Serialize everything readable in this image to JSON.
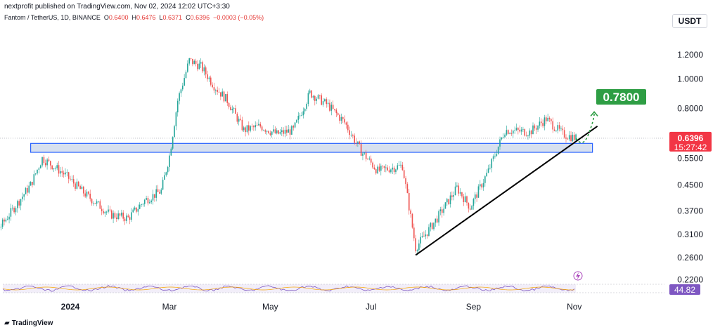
{
  "header": {
    "publish_line": "nextprofit published on TradingView.com, Nov 02, 2024 12:02 UTC+3:30",
    "symbol": "Fantom / TetherUS, 1D, BINANCE",
    "ohlc": {
      "o_label": "O",
      "o": "0.6400",
      "h_label": "H",
      "h": "0.6476",
      "l_label": "L",
      "l": "0.6371",
      "c_label": "C",
      "c": "0.6396",
      "change": "−0.0003 (−0.05%)"
    }
  },
  "currency_button": "USDT",
  "brand": "TradingView",
  "colors": {
    "up": "#26a69a",
    "down": "#ef5350",
    "support_zone_fill": "#c9d6ea",
    "support_zone_border": "#2962ff",
    "trendline": "#000000",
    "target_label": "#2e9e44",
    "price_label": "#f23645",
    "rsi_label": "#7e57c2"
  },
  "chart_data": {
    "type": "candlestick",
    "scale": "log",
    "y_ticks": [
      "1.2000",
      "1.0000",
      "0.8000",
      "0.5500",
      "0.4500",
      "0.3700",
      "0.3100",
      "0.2600",
      "0.2200"
    ],
    "x_ticks": [
      "2024",
      "Mar",
      "May",
      "Jul",
      "Sep",
      "Nov"
    ],
    "current_price": "0.6396",
    "countdown": "15:27:42",
    "target_label": "0.7800",
    "annotations": {
      "support_zone": {
        "low": 0.575,
        "high": 0.615,
        "from": "2023-12-08",
        "to": "2024-11-12"
      },
      "trendline": {
        "from": {
          "date": "2024-07-28",
          "price": 0.265
        },
        "to": {
          "date": "2024-11-15",
          "price": 0.7
        }
      },
      "projected_path_target": 0.78
    },
    "price_path": [
      {
        "date": "2023-11-01",
        "price": 0.29
      },
      {
        "date": "2023-11-20",
        "price": 0.33
      },
      {
        "date": "2023-12-08",
        "price": 0.45
      },
      {
        "date": "2023-12-15",
        "price": 0.55
      },
      {
        "date": "2023-12-28",
        "price": 0.49
      },
      {
        "date": "2024-01-10",
        "price": 0.42
      },
      {
        "date": "2024-01-25",
        "price": 0.36
      },
      {
        "date": "2024-02-05",
        "price": 0.35
      },
      {
        "date": "2024-02-15",
        "price": 0.4
      },
      {
        "date": "2024-02-25",
        "price": 0.43
      },
      {
        "date": "2024-03-01",
        "price": 0.56
      },
      {
        "date": "2024-03-06",
        "price": 0.85
      },
      {
        "date": "2024-03-13",
        "price": 1.15
      },
      {
        "date": "2024-03-20",
        "price": 1.1
      },
      {
        "date": "2024-03-28",
        "price": 0.95
      },
      {
        "date": "2024-04-05",
        "price": 0.85
      },
      {
        "date": "2024-04-15",
        "price": 0.68
      },
      {
        "date": "2024-04-25",
        "price": 0.7
      },
      {
        "date": "2024-05-05",
        "price": 0.66
      },
      {
        "date": "2024-05-15",
        "price": 0.68
      },
      {
        "date": "2024-05-25",
        "price": 0.9
      },
      {
        "date": "2024-06-05",
        "price": 0.82
      },
      {
        "date": "2024-06-15",
        "price": 0.72
      },
      {
        "date": "2024-06-25",
        "price": 0.58
      },
      {
        "date": "2024-07-05",
        "price": 0.5
      },
      {
        "date": "2024-07-20",
        "price": 0.52
      },
      {
        "date": "2024-07-28",
        "price": 0.28
      },
      {
        "date": "2024-08-10",
        "price": 0.35
      },
      {
        "date": "2024-08-22",
        "price": 0.44
      },
      {
        "date": "2024-08-30",
        "price": 0.38
      },
      {
        "date": "2024-09-10",
        "price": 0.5
      },
      {
        "date": "2024-09-20",
        "price": 0.68
      },
      {
        "date": "2024-10-05",
        "price": 0.67
      },
      {
        "date": "2024-10-15",
        "price": 0.74
      },
      {
        "date": "2024-10-25",
        "price": 0.66
      },
      {
        "date": "2024-11-02",
        "price": 0.6396
      }
    ],
    "rsi": {
      "value": "44.82"
    }
  }
}
